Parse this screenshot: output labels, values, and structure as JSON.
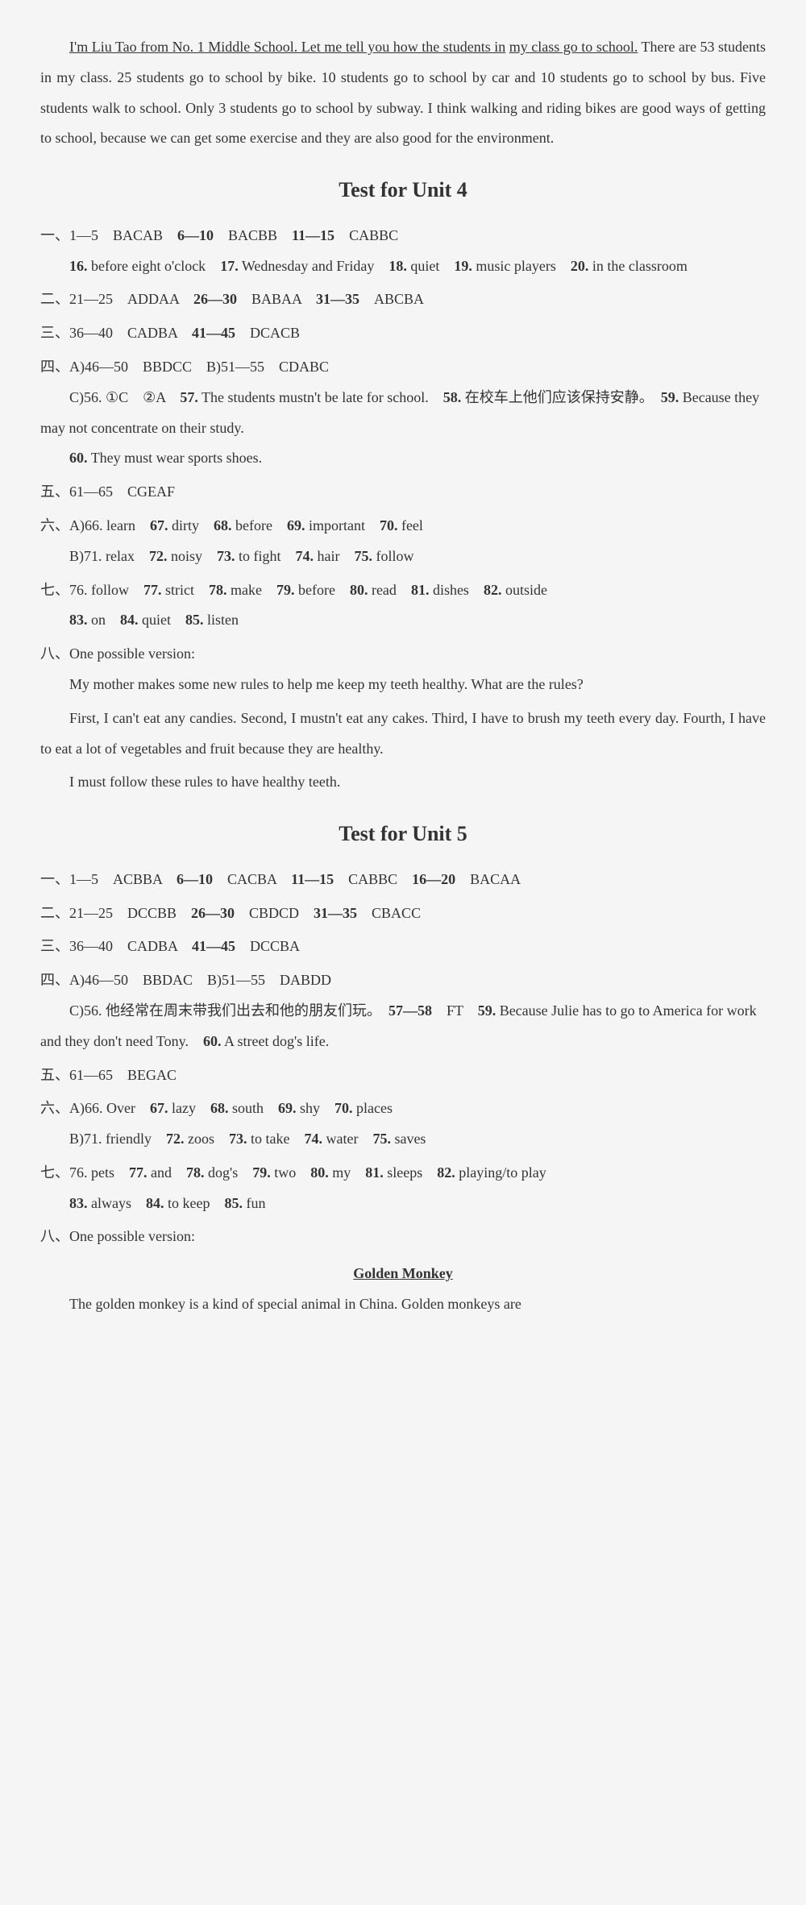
{
  "colors": {
    "text": "#333333",
    "bg": "#f5f5f5"
  },
  "intro": {
    "underlined1": "I'm Liu Tao from No. 1 Middle School. Let me tell you how the students in",
    "underlined2": "my class go to school.",
    "rest": " There are 53 students in my class. 25 students go to school by bike. 10 students go to school by car and 10 students go to school by bus. Five students walk to school. Only 3 students go to school by subway. I think walking and riding bikes are good ways of getting to school, because we can get some exercise and they are also good for the environment."
  },
  "unit4": {
    "title": "Test for Unit 4",
    "s1": {
      "range1": "一、1—5",
      "a1": "BACAB",
      "range2": "6—10",
      "a2": "BACBB",
      "range3": "11—15",
      "a3": "CABBC",
      "n16": "16.",
      "v16": "before eight o'clock",
      "n17": "17.",
      "v17": "Wednesday and Friday",
      "n18": "18.",
      "v18": "quiet",
      "n19": "19.",
      "v19": "music players",
      "n20": "20.",
      "v20": "in the classroom"
    },
    "s2": {
      "label": "二、21—25",
      "a1": "ADDAA",
      "r2": "26—30",
      "a2": "BABAA",
      "r3": "31—35",
      "a3": "ABCBA"
    },
    "s3": {
      "label": "三、36—40",
      "a1": "CADBA",
      "r2": "41—45",
      "a2": "DCACB"
    },
    "s4": {
      "labelA": "四、A)46—50",
      "aA": "BBDCC",
      "labelB": "B)51—55",
      "aB": "CDABC",
      "cLabel": "C)56.",
      "c56a": "①C",
      "c56b": "②A",
      "n57": "57.",
      "v57": "The students mustn't be late for school.",
      "n58": "58.",
      "v58": "在校车上他们应该保持安静。",
      "n59": "59.",
      "v59": "Because they may not concentrate on their study.",
      "n60": "60.",
      "v60": "They must wear sports shoes."
    },
    "s5": {
      "label": "五、61—65",
      "a": "CGEAF"
    },
    "s6": {
      "labelA": "六、A)66.",
      "v66": "learn",
      "n67": "67.",
      "v67": "dirty",
      "n68": "68.",
      "v68": "before",
      "n69": "69.",
      "v69": "important",
      "n70": "70.",
      "v70": "feel",
      "labelB": "B)71.",
      "v71": "relax",
      "n72": "72.",
      "v72": "noisy",
      "n73": "73.",
      "v73": "to fight",
      "n74": "74.",
      "v74": "hair",
      "n75": "75.",
      "v75": "follow"
    },
    "s7": {
      "label": "七、76.",
      "v76": "follow",
      "n77": "77.",
      "v77": "strict",
      "n78": "78.",
      "v78": "make",
      "n79": "79.",
      "v79": "before",
      "n80": "80.",
      "v80": "read",
      "n81": "81.",
      "v81": "dishes",
      "n82": "82.",
      "v82": "outside",
      "n83": "83.",
      "v83": "on",
      "n84": "84.",
      "v84": "quiet",
      "n85": "85.",
      "v85": "listen"
    },
    "s8": {
      "label": "八、One possible version:",
      "p1": "My mother makes some new rules to help me keep my teeth healthy. What are the rules?",
      "p2": "First, I can't eat any candies. Second, I mustn't eat any cakes. Third, I have to brush my teeth every day. Fourth, I have to eat a lot of vegetables and fruit because they are healthy.",
      "p3": "I must follow these rules to have healthy teeth."
    }
  },
  "unit5": {
    "title": "Test for Unit 5",
    "s1": {
      "label": "一、1—5",
      "a1": "ACBBA",
      "r2": "6—10",
      "a2": "CACBA",
      "r3": "11—15",
      "a3": "CABBC",
      "r4": "16—20",
      "a4": "BACAA"
    },
    "s2": {
      "label": "二、21—25",
      "a1": "DCCBB",
      "r2": "26—30",
      "a2": "CBDCD",
      "r3": "31—35",
      "a3": "CBACC"
    },
    "s3": {
      "label": "三、36—40",
      "a1": "CADBA",
      "r2": "41—45",
      "a2": "DCCBA"
    },
    "s4": {
      "labelA": "四、A)46—50",
      "aA": "BBDAC",
      "labelB": "B)51—55",
      "aB": "DABDD",
      "cLabel": "C)56.",
      "v56": "他经常在周末带我们出去和他的朋友们玩。",
      "n5758": "57—58",
      "v5758": "FT",
      "n59": "59.",
      "v59": "Because Julie has to go to America for work and they don't need Tony.",
      "n60": "60.",
      "v60": "A street dog's life."
    },
    "s5": {
      "label": "五、61—65",
      "a": "BEGAC"
    },
    "s6": {
      "labelA": "六、A)66.",
      "v66": "Over",
      "n67": "67.",
      "v67": "lazy",
      "n68": "68.",
      "v68": "south",
      "n69": "69.",
      "v69": "shy",
      "n70": "70.",
      "v70": "places",
      "labelB": "B)71.",
      "v71": "friendly",
      "n72": "72.",
      "v72": "zoos",
      "n73": "73.",
      "v73": "to take",
      "n74": "74.",
      "v74": "water",
      "n75": "75.",
      "v75": "saves"
    },
    "s7": {
      "label": "七、76.",
      "v76": "pets",
      "n77": "77.",
      "v77": "and",
      "n78": "78.",
      "v78": "dog's",
      "n79": "79.",
      "v79": "two",
      "n80": "80.",
      "v80": "my",
      "n81": "81.",
      "v81": "sleeps",
      "n82": "82.",
      "v82": "playing/to play",
      "n83": "83.",
      "v83": "always",
      "n84": "84.",
      "v84": "to keep",
      "n85": "85.",
      "v85": "fun"
    },
    "s8": {
      "label": "八、One possible version:",
      "subtitle": "Golden Monkey",
      "p1": "The golden monkey is a kind of special animal in China. Golden monkeys are"
    }
  }
}
